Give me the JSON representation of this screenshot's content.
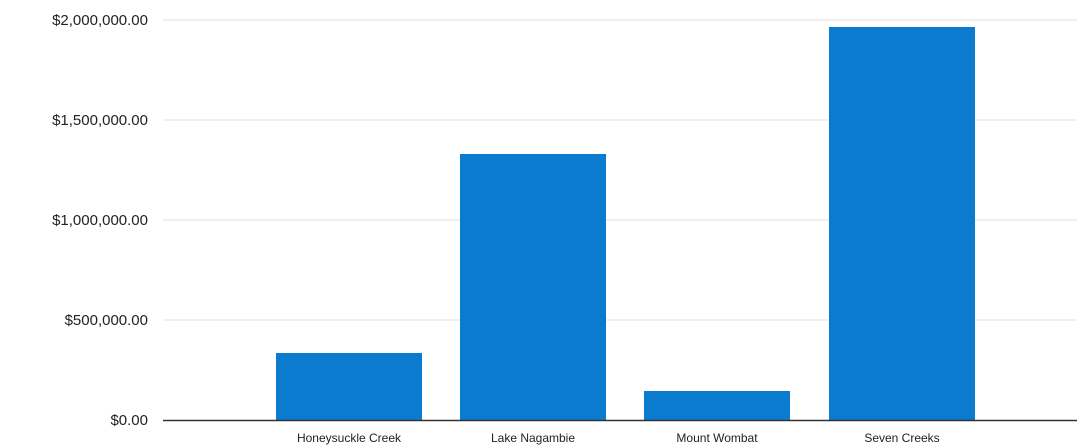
{
  "chart_data": {
    "type": "bar",
    "title": "",
    "xlabel": "",
    "ylabel": "",
    "categories": [
      "Honeysuckle Creek",
      "Lake Nagambie",
      "Mount Wombat",
      "Seven Creeks"
    ],
    "values": [
      335000,
      1330000,
      145000,
      1965000
    ],
    "ylim": [
      0,
      2000000
    ],
    "yticks": [
      0,
      500000,
      1000000,
      1500000,
      2000000
    ],
    "ytick_labels": [
      "$0.00",
      "$500,000.00",
      "$1,000,000.00",
      "$1,500,000.00",
      "$2,000,000.00"
    ],
    "grid": true,
    "legend": "none",
    "colors": {
      "bar": "#0A7BCF",
      "grid": "#E6E6E6",
      "axis": "#333333"
    }
  }
}
